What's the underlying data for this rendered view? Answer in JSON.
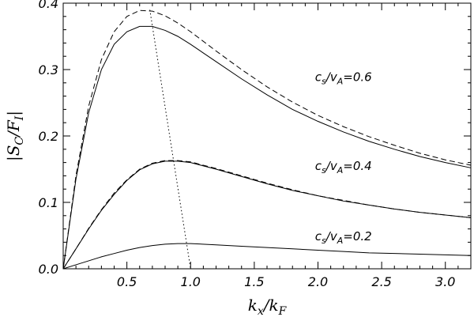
{
  "chart_data": {
    "type": "line",
    "title": "",
    "xlabel": {
      "base": "k",
      "sub": "x",
      "sep": "/",
      "base2": "k",
      "sub2": "F"
    },
    "ylabel": {
      "pre": "|",
      "base": "S",
      "sub": "C",
      "sep": "/",
      "base2": "F",
      "sub2": "I",
      "post": "|"
    },
    "xlim": [
      0,
      3.2
    ],
    "ylim": [
      0,
      0.4
    ],
    "xticks": [
      0.5,
      1.0,
      1.5,
      2.0,
      2.5,
      3.0
    ],
    "xtick_labels": [
      "0.5",
      "1.0",
      "1.5",
      "2.0",
      "2.5",
      "3.0"
    ],
    "yticks": [
      0.0,
      0.1,
      0.2,
      0.3,
      0.4
    ],
    "ytick_labels": [
      "0.0",
      "0.1",
      "0.2",
      "0.3",
      "0.4"
    ],
    "grid": false,
    "legend": "none",
    "x": [
      0.0,
      0.1,
      0.2,
      0.3,
      0.4,
      0.5,
      0.6,
      0.7,
      0.8,
      0.9,
      1.0,
      1.2,
      1.4,
      1.6,
      1.8,
      2.0,
      2.2,
      2.4,
      2.6,
      2.8,
      3.0,
      3.2
    ],
    "series": [
      {
        "style": "solid",
        "values": [
          0.0,
          0.135,
          0.235,
          0.3,
          0.338,
          0.357,
          0.365,
          0.365,
          0.359,
          0.35,
          0.338,
          0.312,
          0.286,
          0.262,
          0.24,
          0.222,
          0.206,
          0.192,
          0.18,
          0.169,
          0.16,
          0.152
        ]
      },
      {
        "style": "dashed",
        "values": [
          0.0,
          0.14,
          0.245,
          0.315,
          0.357,
          0.38,
          0.389,
          0.388,
          0.381,
          0.37,
          0.357,
          0.328,
          0.3,
          0.274,
          0.251,
          0.231,
          0.214,
          0.199,
          0.186,
          0.174,
          0.164,
          0.156
        ]
      },
      {
        "style": "solid",
        "values": [
          0.0,
          0.03,
          0.06,
          0.088,
          0.112,
          0.133,
          0.149,
          0.158,
          0.162,
          0.162,
          0.16,
          0.15,
          0.139,
          0.128,
          0.118,
          0.11,
          0.102,
          0.096,
          0.09,
          0.085,
          0.081,
          0.077
        ]
      },
      {
        "style": "dashed",
        "values": [
          0.0,
          0.03,
          0.061,
          0.089,
          0.114,
          0.134,
          0.15,
          0.159,
          0.163,
          0.163,
          0.161,
          0.151,
          0.14,
          0.129,
          0.119,
          0.11,
          0.103,
          0.096,
          0.09,
          0.085,
          0.081,
          0.077
        ]
      },
      {
        "style": "solid",
        "values": [
          0.0,
          0.006,
          0.012,
          0.018,
          0.023,
          0.028,
          0.032,
          0.035,
          0.037,
          0.038,
          0.038,
          0.036,
          0.034,
          0.032,
          0.03,
          0.028,
          0.026,
          0.024,
          0.023,
          0.022,
          0.021,
          0.02
        ]
      },
      {
        "style": "dotted",
        "x": [
          0.68,
          1.0
        ],
        "values": [
          0.39,
          0.0
        ]
      }
    ],
    "annotations": [
      {
        "base": "c",
        "sub": "s",
        "sep": "/",
        "base2": "v",
        "sub2": "A",
        "eq": "=0.6",
        "x": 2.2,
        "y": 0.283
      },
      {
        "base": "c",
        "sub": "s",
        "sep": "/",
        "base2": "v",
        "sub2": "A",
        "eq": "=0.4",
        "x": 2.2,
        "y": 0.149
      },
      {
        "base": "c",
        "sub": "s",
        "sep": "/",
        "base2": "v",
        "sub2": "A",
        "eq": "=0.2",
        "x": 2.2,
        "y": 0.043
      }
    ]
  }
}
